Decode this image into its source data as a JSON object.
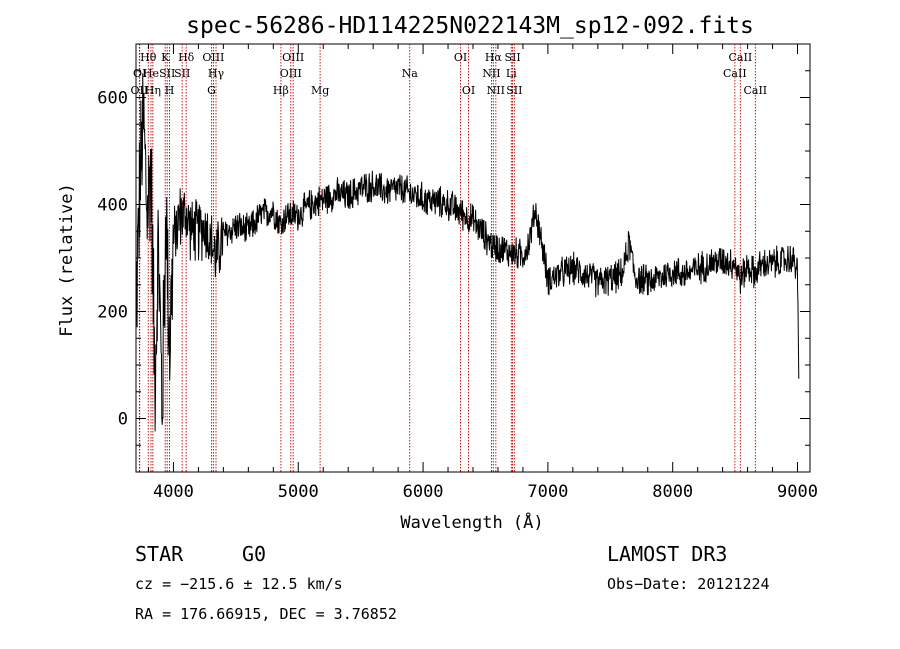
{
  "chart_data": {
    "type": "line",
    "title": "spec-56286-HD114225N022143M_sp12-092.fits",
    "xlabel": "Wavelength (Å)",
    "ylabel": "Flux (relative)",
    "xlim": [
      3700,
      9100
    ],
    "ylim": [
      -100,
      700
    ],
    "xticks": [
      4000,
      5000,
      6000,
      7000,
      8000,
      9000
    ],
    "yticks": [
      0,
      200,
      400,
      600
    ],
    "anchors": [
      [
        3700,
        200
      ],
      [
        3730,
        430
      ],
      [
        3760,
        560
      ],
      [
        3790,
        380
      ],
      [
        3820,
        480
      ],
      [
        3850,
        80
      ],
      [
        3880,
        320
      ],
      [
        3910,
        20
      ],
      [
        3940,
        390
      ],
      [
        3970,
        140
      ],
      [
        4000,
        330
      ],
      [
        4050,
        380
      ],
      [
        4100,
        380
      ],
      [
        4150,
        350
      ],
      [
        4200,
        350
      ],
      [
        4250,
        360
      ],
      [
        4300,
        330
      ],
      [
        4340,
        300
      ],
      [
        4400,
        340
      ],
      [
        4500,
        360
      ],
      [
        4600,
        350
      ],
      [
        4700,
        380
      ],
      [
        4800,
        390
      ],
      [
        4861,
        360
      ],
      [
        4900,
        380
      ],
      [
        5000,
        380
      ],
      [
        5100,
        400
      ],
      [
        5200,
        410
      ],
      [
        5300,
        420
      ],
      [
        5400,
        415
      ],
      [
        5500,
        430
      ],
      [
        5600,
        435
      ],
      [
        5700,
        425
      ],
      [
        5800,
        430
      ],
      [
        5900,
        420
      ],
      [
        6000,
        410
      ],
      [
        6100,
        405
      ],
      [
        6200,
        400
      ],
      [
        6300,
        385
      ],
      [
        6400,
        370
      ],
      [
        6500,
        340
      ],
      [
        6563,
        320
      ],
      [
        6600,
        320
      ],
      [
        6700,
        310
      ],
      [
        6800,
        305
      ],
      [
        6850,
        330
      ],
      [
        6900,
        390
      ],
      [
        6950,
        330
      ],
      [
        7000,
        260
      ],
      [
        7100,
        270
      ],
      [
        7200,
        280
      ],
      [
        7300,
        270
      ],
      [
        7400,
        255
      ],
      [
        7500,
        260
      ],
      [
        7600,
        270
      ],
      [
        7650,
        330
      ],
      [
        7700,
        265
      ],
      [
        7800,
        255
      ],
      [
        7900,
        265
      ],
      [
        8000,
        275
      ],
      [
        8100,
        270
      ],
      [
        8200,
        280
      ],
      [
        8300,
        290
      ],
      [
        8400,
        295
      ],
      [
        8500,
        290
      ],
      [
        8542,
        260
      ],
      [
        8600,
        285
      ],
      [
        8662,
        270
      ],
      [
        8700,
        285
      ],
      [
        8800,
        290
      ],
      [
        8900,
        295
      ],
      [
        8950,
        300
      ],
      [
        9000,
        280
      ],
      [
        9010,
        60
      ]
    ],
    "lines": [
      {
        "name": "OII",
        "wave": 3727,
        "row": 3
      },
      {
        "name": "OI",
        "wave": 3730,
        "row": 2
      },
      {
        "name": "Hθ",
        "wave": 3798,
        "row": 1
      },
      {
        "name": "He",
        "wave": 3820,
        "row": 2
      },
      {
        "name": "Hη",
        "wave": 3835,
        "row": 3
      },
      {
        "name": "K",
        "wave": 3934,
        "row": 1
      },
      {
        "name": "SII",
        "wave": 3950,
        "row": 2
      },
      {
        "name": "H",
        "wave": 3969,
        "row": 3
      },
      {
        "name": "Hδ",
        "wave": 4102,
        "row": 1
      },
      {
        "name": "SII",
        "wave": 4070,
        "row": 2
      },
      {
        "name": "OIII",
        "wave": 4320,
        "row": 1
      },
      {
        "name": "Hγ",
        "wave": 4341,
        "row": 2
      },
      {
        "name": "G",
        "wave": 4305,
        "row": 3
      },
      {
        "name": "Hβ",
        "wave": 4861,
        "row": 3
      },
      {
        "name": "OIII",
        "wave": 4959,
        "row": 1
      },
      {
        "name": "OIII",
        "wave": 4940,
        "row": 2
      },
      {
        "name": "Mg",
        "wave": 5175,
        "row": 3
      },
      {
        "name": "Na",
        "wave": 5893,
        "row": 2
      },
      {
        "name": "OI",
        "wave": 6300,
        "row": 1
      },
      {
        "name": "OI",
        "wave": 6364,
        "row": 3
      },
      {
        "name": "Hα",
        "wave": 6563,
        "row": 1
      },
      {
        "name": "NII",
        "wave": 6548,
        "row": 2
      },
      {
        "name": "NII",
        "wave": 6583,
        "row": 3
      },
      {
        "name": "SII",
        "wave": 6717,
        "row": 1
      },
      {
        "name": "Li",
        "wave": 6707,
        "row": 2
      },
      {
        "name": "SII",
        "wave": 6731,
        "row": 3
      },
      {
        "name": "CaII",
        "wave": 8542,
        "row": 1
      },
      {
        "name": "CaII",
        "wave": 8498,
        "row": 2
      },
      {
        "name": "CaII",
        "wave": 8662,
        "row": 3
      }
    ]
  },
  "info": {
    "object_class": "STAR",
    "subclass": "G0",
    "survey": "LAMOST DR3",
    "redshift": "cz = −215.6 ± 12.5 km/s",
    "obs_date": "Obs−Date: 20121224",
    "coords": "RA = 176.66915, DEC =    3.76852"
  },
  "colors": {
    "line_marker": "#c00000",
    "spectrum": "#000000"
  }
}
